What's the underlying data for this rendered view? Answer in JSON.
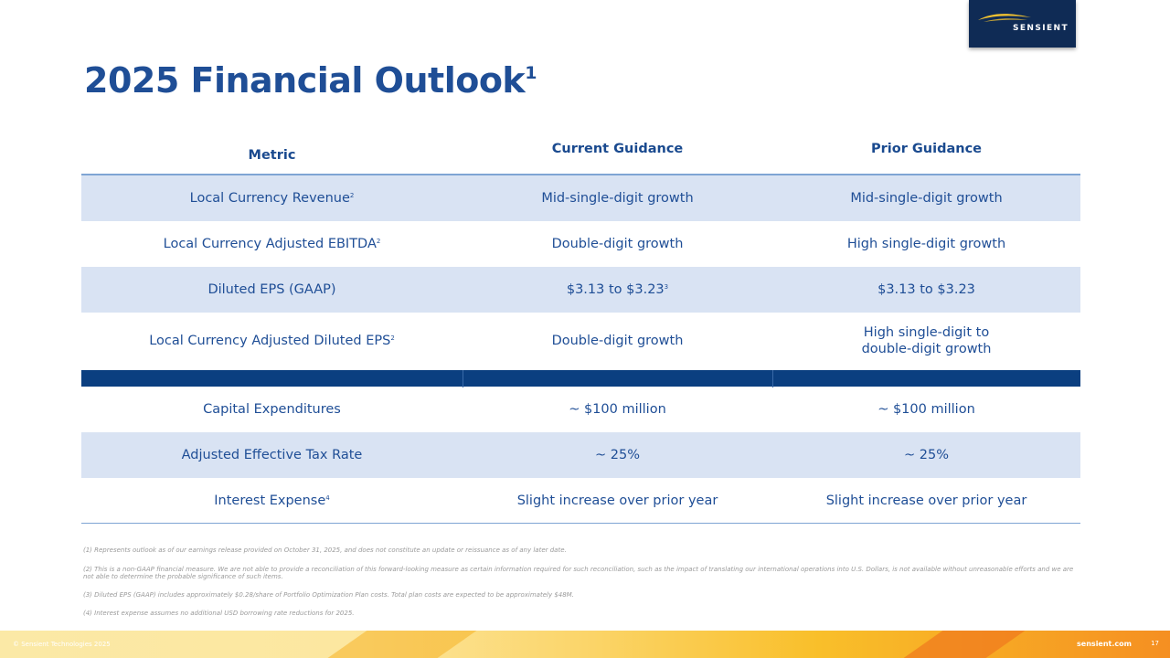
{
  "logo": {
    "text": "SENSIENT",
    "mark": "sensient-swoosh-icon"
  },
  "title": {
    "text": "2025 Financial Outlook",
    "footnote": "1"
  },
  "table": {
    "headers": [
      "Metric",
      "Current Guidance",
      "Prior Guidance"
    ],
    "rows_top": [
      {
        "metric": "Local Currency Revenue",
        "metric_note": "2",
        "current": "Mid-single-digit growth",
        "current_note": "",
        "prior_line1": "Mid-single-digit growth",
        "prior_line2": ""
      },
      {
        "metric": "Local Currency Adjusted EBITDA",
        "metric_note": "2",
        "current": "Double-digit growth",
        "current_note": "",
        "prior_line1": "High single-digit growth",
        "prior_line2": ""
      },
      {
        "metric": "Diluted EPS (GAAP)",
        "metric_note": "",
        "current": "$3.13 to $3.23",
        "current_note": "3",
        "prior_line1": "$3.13 to $3.23",
        "prior_line2": ""
      },
      {
        "metric": "Local Currency Adjusted Diluted EPS",
        "metric_note": "2",
        "current": "Double-digit growth",
        "current_note": "",
        "prior_line1": "High single-digit to",
        "prior_line2": "double-digit growth"
      }
    ],
    "rows_bottom": [
      {
        "metric": "Capital Expenditures",
        "metric_note": "",
        "current": "~ $100 million",
        "prior": "~ $100 million"
      },
      {
        "metric": "Adjusted Effective Tax Rate",
        "metric_note": "",
        "current": "~ 25%",
        "prior": "~ 25%"
      },
      {
        "metric": "Interest Expense",
        "metric_note": "4",
        "current": "Slight increase over prior year",
        "prior": "Slight increase over prior year"
      }
    ]
  },
  "footnotes": [
    "(1) Represents outlook as of our earnings release provided on October 31, 2025, and does not constitute an update or reissuance as of any later date.",
    "(2) This is a non-GAAP financial measure. We are not able to provide a reconciliation of this forward-looking measure as certain information required for such reconciliation, such as the impact of translating our international operations into U.S. Dollars, is not available without unreasonable efforts and we are not able to determine the probable significance of such items.",
    "(3) Diluted EPS (GAAP) includes approximately $0.28/share of Portfolio Optimization Plan costs. Total plan costs are expected to be approximately $48M.",
    "(4) Interest expense assumes no additional USD borrowing rate reductions for 2025."
  ],
  "footer": {
    "copyright": "© Sensient Technologies 2025",
    "website": "sensient.com",
    "page_number": "17"
  },
  "colors": {
    "title": "#1f4e96",
    "row_shade": "#d9e3f3",
    "separator": "#0b3f80",
    "logo_bg": "#0f2b55",
    "logo_swoosh": "#f2c230"
  }
}
